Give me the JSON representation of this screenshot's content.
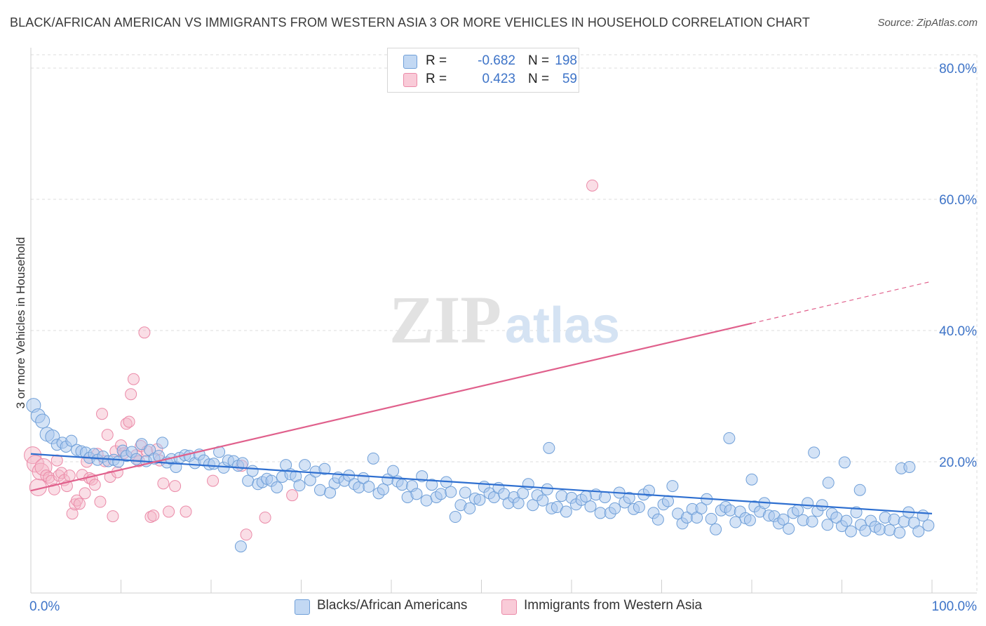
{
  "title": "BLACK/AFRICAN AMERICAN VS IMMIGRANTS FROM WESTERN ASIA 3 OR MORE VEHICLES IN HOUSEHOLD CORRELATION CHART",
  "source": "Source: ZipAtlas.com",
  "watermark": {
    "zip": "ZIP",
    "atlas": "atlas"
  },
  "legend": {
    "r_label": "R =",
    "n_label": "N =",
    "rows": [
      {
        "r": "-0.682",
        "n": "198"
      },
      {
        "r": "0.423",
        "n": "59"
      }
    ]
  },
  "colors": {
    "blue_fill": "#a9c8ee",
    "blue_stroke": "#6f9fd8",
    "blue_line": "#2e6fd0",
    "pink_fill": "#f5b5c8",
    "pink_stroke": "#eb8aa8",
    "pink_line": "#e0608c",
    "tick_label": "#3e74c8"
  },
  "chart_data": {
    "type": "scatter",
    "title": "BLACK/AFRICAN AMERICAN VS IMMIGRANTS FROM WESTERN ASIA 3 OR MORE VEHICLES IN HOUSEHOLD CORRELATION CHART",
    "xlabel": "",
    "ylabel": "3 or more Vehicles in Household",
    "xlim": [
      0,
      100
    ],
    "ylim": [
      0,
      80
    ],
    "x_tick_labels": [
      "0.0%",
      "100.0%"
    ],
    "y_ticks": [
      20,
      40,
      60,
      80
    ],
    "y_tick_labels": [
      "20.0%",
      "40.0%",
      "60.0%",
      "80.0%"
    ],
    "grid": true,
    "legend_position": "top-center",
    "series": [
      {
        "name": "Blacks/African Americans",
        "r": -0.682,
        "n": 198,
        "trend": {
          "x0": 0,
          "y0": 21.2,
          "x1": 100,
          "y1": 12.1
        },
        "points": [
          [
            0.3,
            28.6
          ],
          [
            0.8,
            27.0
          ],
          [
            1.3,
            26.2
          ],
          [
            1.8,
            24.2
          ],
          [
            2.4,
            23.8
          ],
          [
            2.9,
            22.6
          ],
          [
            3.5,
            22.9
          ],
          [
            3.9,
            22.3
          ],
          [
            4.5,
            23.2
          ],
          [
            5.1,
            21.8
          ],
          [
            5.6,
            21.6
          ],
          [
            6.1,
            21.4
          ],
          [
            6.5,
            20.6
          ],
          [
            7.0,
            21.2
          ],
          [
            7.4,
            20.3
          ],
          [
            8.0,
            20.8
          ],
          [
            8.6,
            20.1
          ],
          [
            9.2,
            20.3
          ],
          [
            9.7,
            20.0
          ],
          [
            10.2,
            21.7
          ],
          [
            10.6,
            20.9
          ],
          [
            11.2,
            21.5
          ],
          [
            11.7,
            20.4
          ],
          [
            12.3,
            22.7
          ],
          [
            12.8,
            20.1
          ],
          [
            13.2,
            21.8
          ],
          [
            13.7,
            20.5
          ],
          [
            14.2,
            20.9
          ],
          [
            14.6,
            22.9
          ],
          [
            15.1,
            19.9
          ],
          [
            15.6,
            20.4
          ],
          [
            16.1,
            19.2
          ],
          [
            16.5,
            20.6
          ],
          [
            17.1,
            21.0
          ],
          [
            17.6,
            20.9
          ],
          [
            18.2,
            19.8
          ],
          [
            18.7,
            21.1
          ],
          [
            19.2,
            20.2
          ],
          [
            19.8,
            19.6
          ],
          [
            20.3,
            19.7
          ],
          [
            20.9,
            21.5
          ],
          [
            21.4,
            19.1
          ],
          [
            21.9,
            20.2
          ],
          [
            22.5,
            20.1
          ],
          [
            23.0,
            19.4
          ],
          [
            23.5,
            19.8
          ],
          [
            24.1,
            17.1
          ],
          [
            24.6,
            18.6
          ],
          [
            25.2,
            16.6
          ],
          [
            25.7,
            16.9
          ],
          [
            26.2,
            17.4
          ],
          [
            26.7,
            17.1
          ],
          [
            27.3,
            16.1
          ],
          [
            27.9,
            17.7
          ],
          [
            28.3,
            19.5
          ],
          [
            28.8,
            18.1
          ],
          [
            29.4,
            17.8
          ],
          [
            29.8,
            16.4
          ],
          [
            30.4,
            19.5
          ],
          [
            31.0,
            17.2
          ],
          [
            31.6,
            18.5
          ],
          [
            32.1,
            15.7
          ],
          [
            32.6,
            18.9
          ],
          [
            33.2,
            15.3
          ],
          [
            33.7,
            16.7
          ],
          [
            34.1,
            17.6
          ],
          [
            34.8,
            17.1
          ],
          [
            35.3,
            17.9
          ],
          [
            35.9,
            16.6
          ],
          [
            36.4,
            16.1
          ],
          [
            36.9,
            17.5
          ],
          [
            37.5,
            16.2
          ],
          [
            38.0,
            20.5
          ],
          [
            38.6,
            15.2
          ],
          [
            39.1,
            15.8
          ],
          [
            39.6,
            17.3
          ],
          [
            40.2,
            18.6
          ],
          [
            40.7,
            17.0
          ],
          [
            41.2,
            16.5
          ],
          [
            41.8,
            14.6
          ],
          [
            42.3,
            16.3
          ],
          [
            42.8,
            15.1
          ],
          [
            43.4,
            17.8
          ],
          [
            43.9,
            14.1
          ],
          [
            44.5,
            16.5
          ],
          [
            45.0,
            14.6
          ],
          [
            45.5,
            15.1
          ],
          [
            46.1,
            16.9
          ],
          [
            46.6,
            15.4
          ],
          [
            47.1,
            11.6
          ],
          [
            47.7,
            13.4
          ],
          [
            48.2,
            15.3
          ],
          [
            48.7,
            12.9
          ],
          [
            49.3,
            14.4
          ],
          [
            49.8,
            14.2
          ],
          [
            50.3,
            16.2
          ],
          [
            50.9,
            15.2
          ],
          [
            51.4,
            14.6
          ],
          [
            51.9,
            16.0
          ],
          [
            52.5,
            15.1
          ],
          [
            53.0,
            13.7
          ],
          [
            53.6,
            14.6
          ],
          [
            54.1,
            13.7
          ],
          [
            54.6,
            15.2
          ],
          [
            55.2,
            16.6
          ],
          [
            55.7,
            13.4
          ],
          [
            56.2,
            14.9
          ],
          [
            56.8,
            14.1
          ],
          [
            57.3,
            15.8
          ],
          [
            57.8,
            12.9
          ],
          [
            58.4,
            13.1
          ],
          [
            58.9,
            14.8
          ],
          [
            59.4,
            12.4
          ],
          [
            60.0,
            14.5
          ],
          [
            60.5,
            13.5
          ],
          [
            61.1,
            14.2
          ],
          [
            61.6,
            14.7
          ],
          [
            62.1,
            13.2
          ],
          [
            62.7,
            15.0
          ],
          [
            63.2,
            12.2
          ],
          [
            63.7,
            14.6
          ],
          [
            64.3,
            12.2
          ],
          [
            64.8,
            12.9
          ],
          [
            65.3,
            15.3
          ],
          [
            65.9,
            13.8
          ],
          [
            66.4,
            14.5
          ],
          [
            66.9,
            12.8
          ],
          [
            67.5,
            13.1
          ],
          [
            68.0,
            15.0
          ],
          [
            68.6,
            15.6
          ],
          [
            69.1,
            12.2
          ],
          [
            69.6,
            11.2
          ],
          [
            70.2,
            13.5
          ],
          [
            70.7,
            14.0
          ],
          [
            71.2,
            16.3
          ],
          [
            71.8,
            12.1
          ],
          [
            72.3,
            10.6
          ],
          [
            72.8,
            11.5
          ],
          [
            73.4,
            12.8
          ],
          [
            73.9,
            11.5
          ],
          [
            74.4,
            12.9
          ],
          [
            75.0,
            14.3
          ],
          [
            75.5,
            11.3
          ],
          [
            76.0,
            9.7
          ],
          [
            76.6,
            12.6
          ],
          [
            77.1,
            13.1
          ],
          [
            77.6,
            12.6
          ],
          [
            78.2,
            10.8
          ],
          [
            78.7,
            12.4
          ],
          [
            79.3,
            11.4
          ],
          [
            79.8,
            11.1
          ],
          [
            80.3,
            13.2
          ],
          [
            80.9,
            12.4
          ],
          [
            81.4,
            13.7
          ],
          [
            81.9,
            11.8
          ],
          [
            82.5,
            11.7
          ],
          [
            83.0,
            10.6
          ],
          [
            83.5,
            11.2
          ],
          [
            84.1,
            9.8
          ],
          [
            84.6,
            12.2
          ],
          [
            85.1,
            12.6
          ],
          [
            85.7,
            11.1
          ],
          [
            86.2,
            13.7
          ],
          [
            86.7,
            10.9
          ],
          [
            87.3,
            12.5
          ],
          [
            87.8,
            13.4
          ],
          [
            88.4,
            10.4
          ],
          [
            88.9,
            12.1
          ],
          [
            89.4,
            11.5
          ],
          [
            90.0,
            10.2
          ],
          [
            90.5,
            11.0
          ],
          [
            91.0,
            9.4
          ],
          [
            91.6,
            12.3
          ],
          [
            92.1,
            10.4
          ],
          [
            92.6,
            9.5
          ],
          [
            93.2,
            11.0
          ],
          [
            93.7,
            10.1
          ],
          [
            94.2,
            9.7
          ],
          [
            94.8,
            11.5
          ],
          [
            95.3,
            9.6
          ],
          [
            95.8,
            11.2
          ],
          [
            96.4,
            9.2
          ],
          [
            96.9,
            10.9
          ],
          [
            97.4,
            12.3
          ],
          [
            98.0,
            10.7
          ],
          [
            98.5,
            9.4
          ],
          [
            99.0,
            11.8
          ],
          [
            99.6,
            10.3
          ],
          [
            23.3,
            7.1
          ],
          [
            57.5,
            22.1
          ],
          [
            77.5,
            23.6
          ],
          [
            86.9,
            21.4
          ],
          [
            90.3,
            19.9
          ],
          [
            92.0,
            15.7
          ],
          [
            96.6,
            19.0
          ],
          [
            97.5,
            19.2
          ],
          [
            80.0,
            17.3
          ],
          [
            88.5,
            16.8
          ]
        ]
      },
      {
        "name": "Immigrants from Western Asia",
        "r": 0.423,
        "n": 59,
        "trend": {
          "x0": 0,
          "y0": 15.6,
          "x1": 80,
          "y1": 41.1
        },
        "trend_extension": {
          "x0": 80,
          "y0": 41.1,
          "x1": 100,
          "y1": 47.5
        },
        "points": [
          [
            0.2,
            21.0
          ],
          [
            0.5,
            19.7
          ],
          [
            0.8,
            16.1
          ],
          [
            1.1,
            18.5
          ],
          [
            1.4,
            19.2
          ],
          [
            1.7,
            17.9
          ],
          [
            2.0,
            17.6
          ],
          [
            2.3,
            17.1
          ],
          [
            2.6,
            15.8
          ],
          [
            2.9,
            20.2
          ],
          [
            3.1,
            17.9
          ],
          [
            3.4,
            18.3
          ],
          [
            3.7,
            17.2
          ],
          [
            4.0,
            16.3
          ],
          [
            4.3,
            17.9
          ],
          [
            4.6,
            12.1
          ],
          [
            4.9,
            13.5
          ],
          [
            5.1,
            14.1
          ],
          [
            5.4,
            13.6
          ],
          [
            5.7,
            18.0
          ],
          [
            6.0,
            15.2
          ],
          [
            6.2,
            20.0
          ],
          [
            6.5,
            17.5
          ],
          [
            6.8,
            17.3
          ],
          [
            7.1,
            16.5
          ],
          [
            7.4,
            21.2
          ],
          [
            7.7,
            13.9
          ],
          [
            7.9,
            27.3
          ],
          [
            8.2,
            20.1
          ],
          [
            8.5,
            24.1
          ],
          [
            8.8,
            17.7
          ],
          [
            9.1,
            11.7
          ],
          [
            9.4,
            21.6
          ],
          [
            9.6,
            18.4
          ],
          [
            10.0,
            22.5
          ],
          [
            10.3,
            21.3
          ],
          [
            10.6,
            25.8
          ],
          [
            10.9,
            26.1
          ],
          [
            11.1,
            30.3
          ],
          [
            11.4,
            32.6
          ],
          [
            11.7,
            21.0
          ],
          [
            12.0,
            20.1
          ],
          [
            12.2,
            22.4
          ],
          [
            12.6,
            39.7
          ],
          [
            12.9,
            21.6
          ],
          [
            13.3,
            11.6
          ],
          [
            13.6,
            11.8
          ],
          [
            14.0,
            21.9
          ],
          [
            14.3,
            20.2
          ],
          [
            14.7,
            16.7
          ],
          [
            15.3,
            12.4
          ],
          [
            16.0,
            16.3
          ],
          [
            17.2,
            12.4
          ],
          [
            20.2,
            17.1
          ],
          [
            23.4,
            19.4
          ],
          [
            23.9,
            8.9
          ],
          [
            26.0,
            11.5
          ],
          [
            29.0,
            14.9
          ],
          [
            62.3,
            62.1
          ]
        ]
      }
    ]
  }
}
